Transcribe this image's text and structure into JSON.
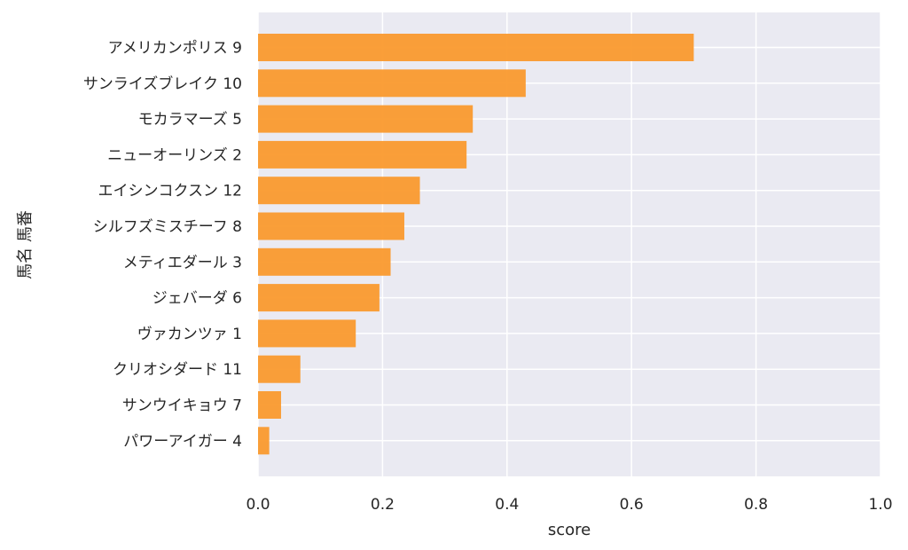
{
  "chart_data": {
    "type": "bar",
    "orientation": "horizontal",
    "categories": [
      "アメリカンポリス 9",
      "サンライズブレイク 10",
      "モカラマーズ 5",
      "ニューオーリンズ 2",
      "エイシンコクスン 12",
      "シルフズミスチーフ 8",
      "メティエダール 3",
      "ジェバーダ 6",
      "ヴァカンツァ 1",
      "クリオシダード 11",
      "サンウイキョウ 7",
      "パワーアイガー 4"
    ],
    "values": [
      0.7,
      0.43,
      0.345,
      0.335,
      0.26,
      0.235,
      0.213,
      0.195,
      0.157,
      0.068,
      0.037,
      0.018
    ],
    "xlabel": "score",
    "ylabel": "馬名 馬番",
    "xlim": [
      0,
      1.0
    ],
    "xticks": [
      "0.0",
      "0.2",
      "0.4",
      "0.6",
      "0.8",
      "1.0"
    ],
    "grid": true,
    "colors": {
      "bar": "#fa9a2e",
      "plot_background": "#eaeaf2",
      "grid": "#ffffff",
      "text": "#262626"
    }
  }
}
